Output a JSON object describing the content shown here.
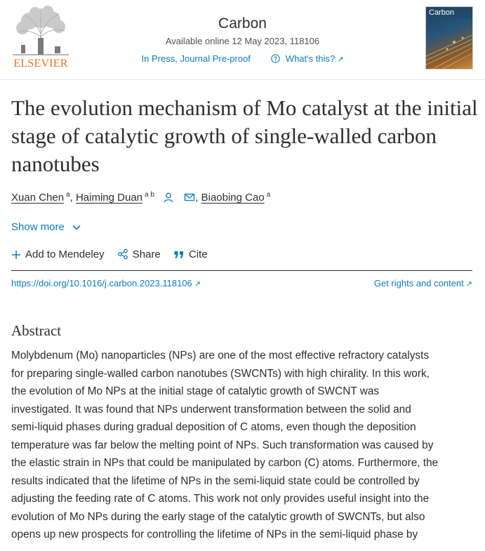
{
  "header": {
    "publisher_logo_text": "ELSEVIER",
    "journal_title": "Carbon",
    "availability": "Available online 12 May 2023, 118106",
    "status_link": "In Press, Journal Pre-proof",
    "help_link": "What's this?",
    "external_icon": "↗",
    "cover_title": "Carbon"
  },
  "article": {
    "title": "The evolution mechanism of Mo catalyst at the initial stage of catalytic growth of single-walled carbon nanotubes",
    "authors": [
      {
        "name": "Xuan Chen",
        "affil": "a"
      },
      {
        "name": "Haiming Duan",
        "affil": "a b"
      },
      {
        "name": "Biaobing Cao",
        "affil": "a"
      }
    ],
    "author_separator": ",",
    "show_more": "Show more",
    "actions": {
      "mendeley": "Add to Mendeley",
      "share": "Share",
      "cite": "Cite"
    },
    "doi": "https://doi.org/10.1016/j.carbon.2023.118106",
    "rights": "Get rights and content"
  },
  "abstract": {
    "heading": "Abstract",
    "lines": [
      "Molybdenum (Mo) nanoparticles (NPs) are one of the most effective refractory catalysts",
      "for preparing single-walled carbon nanotubes (SWCNTs) with high chirality. In this work,",
      "the evolution of Mo NPs at the initial stage of catalytic growth of SWCNT was",
      "investigated. It was found that NPs underwent transformation between the solid and",
      "semi-liquid phases during gradual deposition of C atoms, even though the deposition",
      "temperature was far below the melting point of NPs. Such transformation was caused by",
      "the elastic strain in NPs that could be manipulated by carbon (C) atoms. Furthermore, the",
      "results indicated that the lifetime of NPs in the semi-liquid state could be controlled by",
      "adjusting the feeding rate of C atoms. This work not only provides useful insight into the",
      "evolution of Mo NPs during the early stage of the catalytic growth of SWCNTs, but also",
      "opens up new prospects for controlling the lifetime of NPs in the semi-liquid phase by"
    ]
  },
  "colors": {
    "link": "#0c7dbb",
    "text": "#2e2e2e",
    "elsevier_orange": "#e9711c"
  }
}
